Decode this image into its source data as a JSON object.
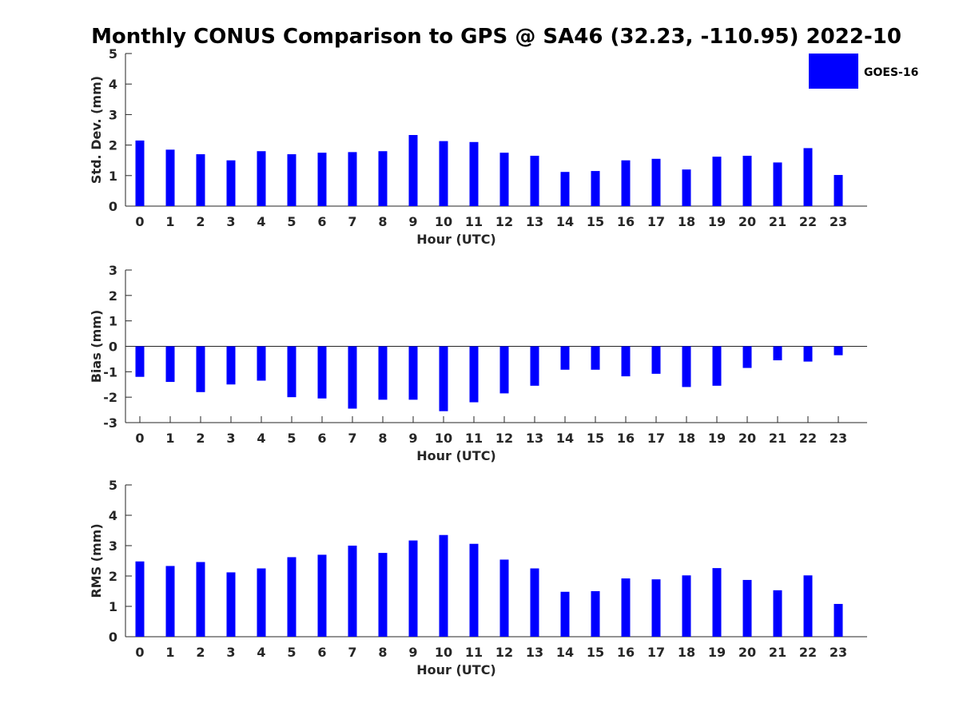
{
  "title": "Monthly CONUS Comparison to GPS @ SA46 (32.23, -110.95) 2022-10",
  "legend": {
    "label": "GOES-16",
    "color": "#0000ff"
  },
  "chart_data": [
    {
      "type": "bar",
      "ylabel": "Std. Dev. (mm)",
      "xlabel": "Hour (UTC)",
      "ylim": [
        0,
        5
      ],
      "yticks": [
        0,
        1,
        2,
        3,
        4,
        5
      ],
      "categories": [
        "0",
        "1",
        "2",
        "3",
        "4",
        "5",
        "6",
        "7",
        "8",
        "9",
        "10",
        "11",
        "12",
        "13",
        "14",
        "15",
        "16",
        "17",
        "18",
        "19",
        "20",
        "21",
        "22",
        "23"
      ],
      "series": [
        {
          "name": "GOES-16",
          "color": "#0000ff",
          "values": [
            2.15,
            1.85,
            1.7,
            1.5,
            1.8,
            1.7,
            1.75,
            1.77,
            1.8,
            2.33,
            2.13,
            2.1,
            1.75,
            1.65,
            1.12,
            1.15,
            1.5,
            1.55,
            1.2,
            1.62,
            1.65,
            1.43,
            1.9,
            1.02
          ]
        }
      ]
    },
    {
      "type": "bar",
      "ylabel": "Bias (mm)",
      "xlabel": "Hour (UTC)",
      "ylim": [
        -3,
        3
      ],
      "yticks": [
        -3,
        -2,
        -1,
        0,
        1,
        2,
        3
      ],
      "categories": [
        "0",
        "1",
        "2",
        "3",
        "4",
        "5",
        "6",
        "7",
        "8",
        "9",
        "10",
        "11",
        "12",
        "13",
        "14",
        "15",
        "16",
        "17",
        "18",
        "19",
        "20",
        "21",
        "22",
        "23"
      ],
      "series": [
        {
          "name": "GOES-16",
          "color": "#0000ff",
          "values": [
            -1.2,
            -1.4,
            -1.8,
            -1.5,
            -1.35,
            -2.0,
            -2.05,
            -2.45,
            -2.1,
            -2.1,
            -2.55,
            -2.2,
            -1.85,
            -1.55,
            -0.92,
            -0.92,
            -1.18,
            -1.08,
            -1.6,
            -1.55,
            -0.85,
            -0.55,
            -0.6,
            -0.35
          ]
        }
      ]
    },
    {
      "type": "bar",
      "ylabel": "RMS (mm)",
      "xlabel": "Hour (UTC)",
      "ylim": [
        0,
        5
      ],
      "yticks": [
        0,
        1,
        2,
        3,
        4,
        5
      ],
      "categories": [
        "0",
        "1",
        "2",
        "3",
        "4",
        "5",
        "6",
        "7",
        "8",
        "9",
        "10",
        "11",
        "12",
        "13",
        "14",
        "15",
        "16",
        "17",
        "18",
        "19",
        "20",
        "21",
        "22",
        "23"
      ],
      "series": [
        {
          "name": "GOES-16",
          "color": "#0000ff",
          "values": [
            2.48,
            2.33,
            2.46,
            2.12,
            2.25,
            2.62,
            2.7,
            3.0,
            2.76,
            3.17,
            3.35,
            3.06,
            2.54,
            2.25,
            1.48,
            1.5,
            1.92,
            1.89,
            2.02,
            2.26,
            1.87,
            1.53,
            2.02,
            1.08
          ]
        }
      ]
    }
  ]
}
